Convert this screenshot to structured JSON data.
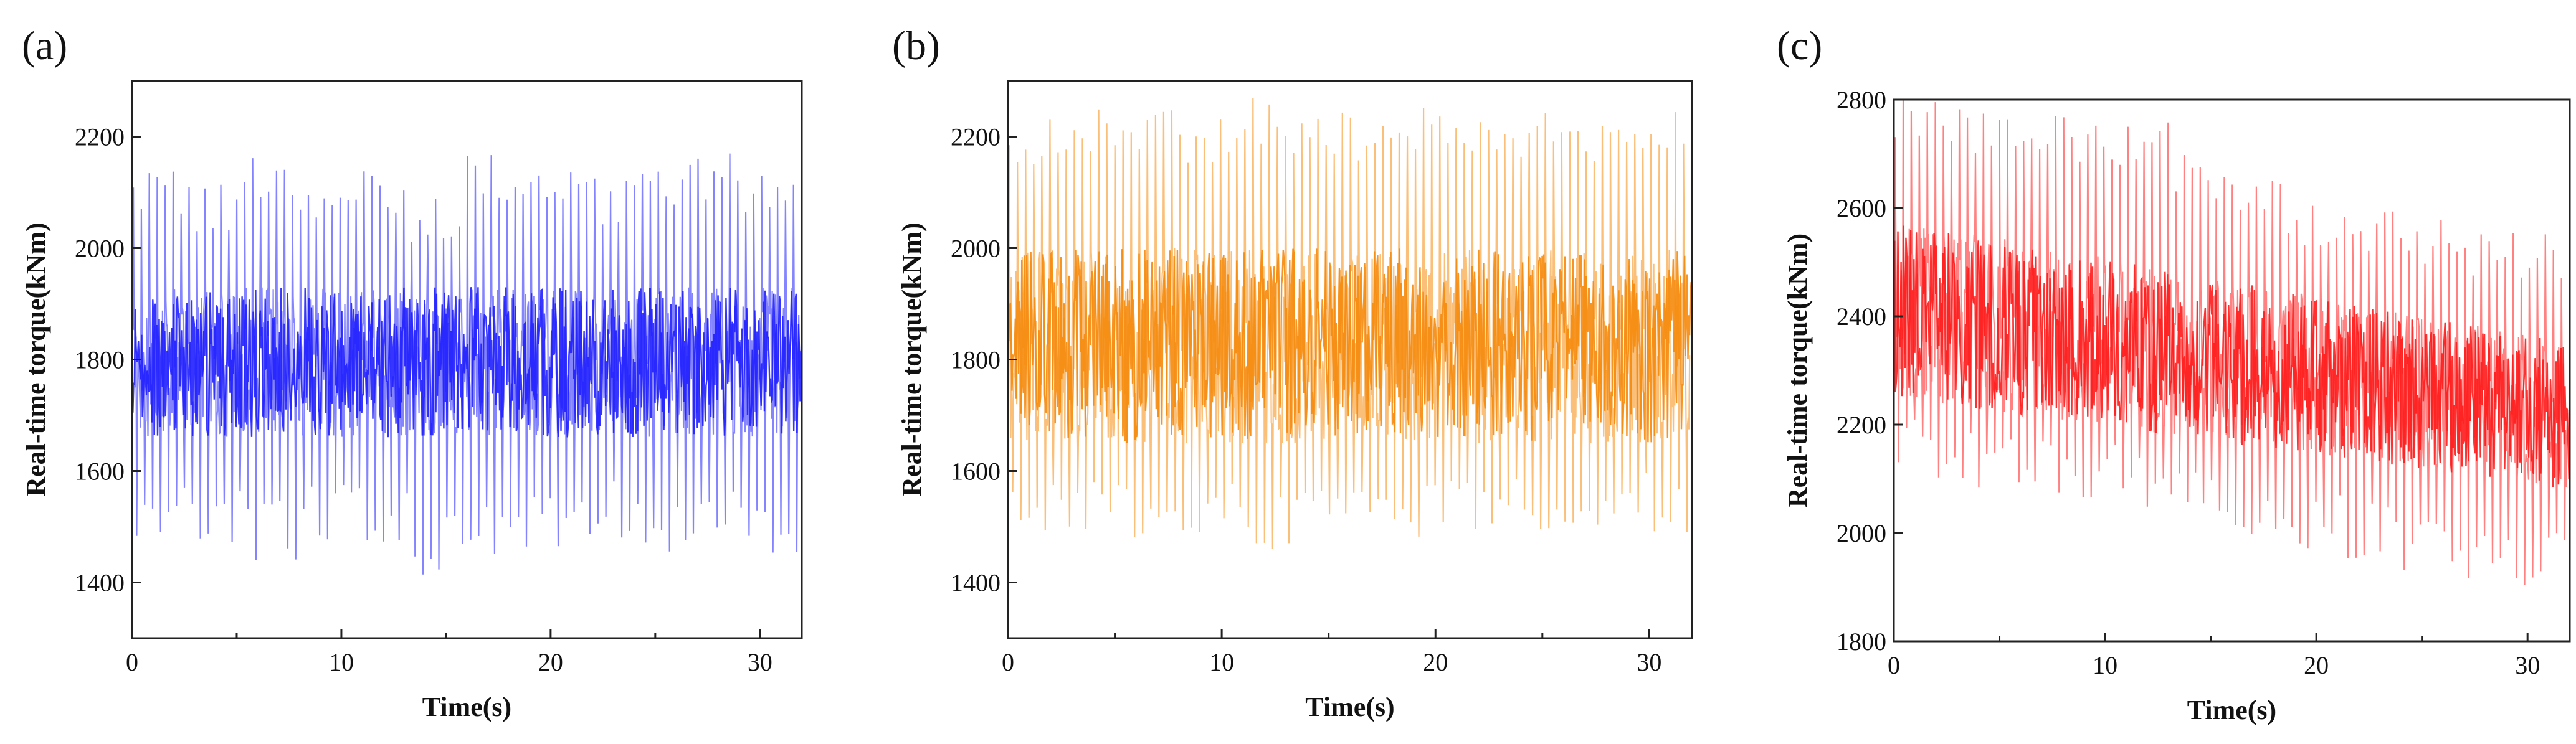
{
  "chart_data": [
    {
      "type": "line",
      "panel_label": "(a)",
      "xlabel": "Time(s)",
      "ylabel": "Real-time torque(kNm)",
      "xlim": [
        0,
        32
      ],
      "ylim": [
        1300,
        2300
      ],
      "xticks": [
        0,
        10,
        20,
        30
      ],
      "yticks": [
        1400,
        1600,
        1800,
        2000,
        2200
      ],
      "color": "#1f1fff",
      "series": [
        {
          "x_range": [
            0,
            32
          ],
          "cycle_period_s": 0.38,
          "band_center": 1810,
          "band_lower": 1660,
          "band_upper": 1930,
          "peak_values": [
            2150,
            2120,
            2180,
            2140,
            2150,
            2100,
            2170,
            2150,
            2130,
            2160,
            2170,
            2150
          ],
          "trough_values": [
            1460,
            1470,
            1440,
            1470,
            1460,
            1410,
            1440,
            1460,
            1480,
            1450,
            1460,
            1440
          ]
        }
      ]
    },
    {
      "type": "line",
      "panel_label": "(b)",
      "xlabel": "Time(s)",
      "ylabel": "Real-time torque(kNm)",
      "xlim": [
        0,
        32
      ],
      "ylim": [
        1300,
        2300
      ],
      "xticks": [
        0,
        10,
        20,
        30
      ],
      "yticks": [
        1400,
        1600,
        1800,
        2000,
        2200
      ],
      "color": "#f58a0b",
      "series": [
        {
          "x_range": [
            0,
            32
          ],
          "cycle_period_s": 0.38,
          "band_center": 1830,
          "band_lower": 1650,
          "band_upper": 2000,
          "peak_values": [
            2240,
            2260,
            2250,
            2240,
            2270,
            2250,
            2240,
            2260,
            2250,
            2250,
            2240,
            2250
          ],
          "trough_values": [
            1480,
            1490,
            1470,
            1480,
            1460,
            1480,
            1470,
            1480,
            1490,
            1480,
            1480,
            1490
          ]
        }
      ]
    },
    {
      "type": "line",
      "panel_label": "(c)",
      "xlabel": "Time(s)",
      "ylabel": "Real-time torque(kNm)",
      "xlim": [
        0,
        32
      ],
      "ylim": [
        1800,
        2800
      ],
      "xticks": [
        0,
        10,
        20,
        30
      ],
      "yticks": [
        1800,
        2000,
        2200,
        2400,
        2600,
        2800
      ],
      "color": "#ff1a1a",
      "series": [
        {
          "x_range": [
            0,
            32
          ],
          "cycle_period_s": 0.38,
          "band_center_start": 2430,
          "band_center_end": 2210,
          "band_lower_start": 2250,
          "band_lower_end": 2080,
          "band_upper_start": 2580,
          "band_upper_end": 2350,
          "peak_values": [
            2800,
            2790,
            2780,
            2770,
            2760,
            2700,
            2650,
            2620,
            2600,
            2580,
            2560,
            2560
          ],
          "trough_values": [
            2100,
            2080,
            2070,
            2060,
            2040,
            2010,
            1980,
            1960,
            1950,
            1920,
            1900,
            1890
          ]
        }
      ]
    }
  ]
}
